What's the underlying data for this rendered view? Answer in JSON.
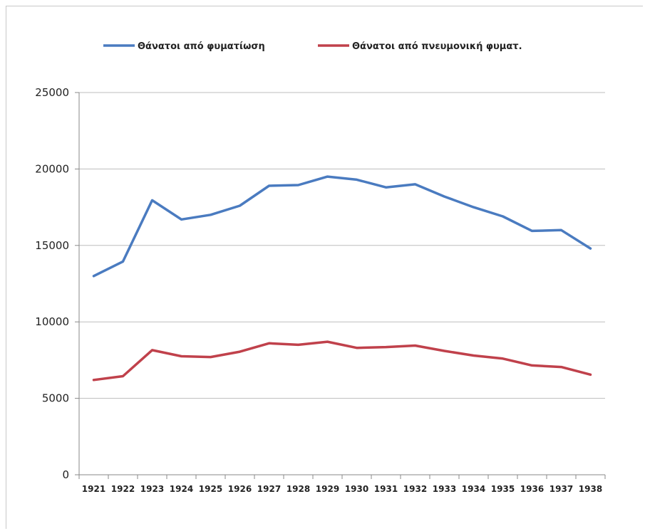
{
  "chart_data": {
    "type": "line",
    "title": "",
    "xlabel": "",
    "ylabel": "",
    "categories": [
      "1921",
      "1922",
      "1923",
      "1924",
      "1925",
      "1926",
      "1927",
      "1928",
      "1929",
      "1930",
      "1931",
      "1932",
      "1933",
      "1934",
      "1935",
      "1936",
      "1937",
      "1938"
    ],
    "ylim": [
      0,
      25000
    ],
    "yticks": [
      "0",
      "5000",
      "10000",
      "15000",
      "20000",
      "25000"
    ],
    "grid": true,
    "legend_position": "top",
    "series": [
      {
        "name": "Θάνατοι από φυματίωση",
        "color": "#4a7bc0",
        "values": [
          13000,
          13950,
          17950,
          16700,
          17000,
          17600,
          18900,
          18950,
          19500,
          19300,
          18800,
          19000,
          18200,
          17500,
          16900,
          15950,
          16000,
          14800
        ]
      },
      {
        "name": "Θάνατοι από πνευμονική φυματ.",
        "color": "#c0414b",
        "values": [
          6200,
          6450,
          8150,
          7750,
          7700,
          8050,
          8600,
          8500,
          8700,
          8300,
          8350,
          8450,
          8100,
          7800,
          7600,
          7150,
          7050,
          6550
        ]
      }
    ]
  }
}
